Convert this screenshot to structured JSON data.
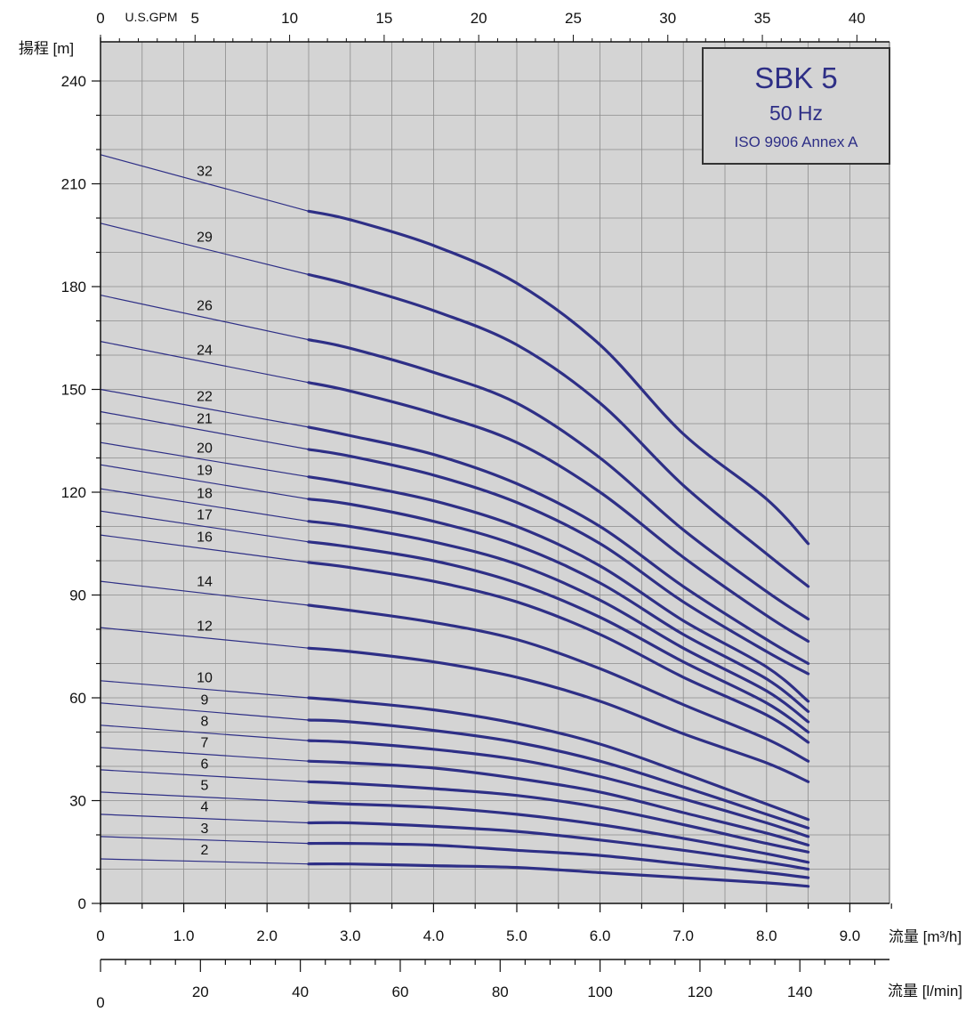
{
  "chart_data": {
    "type": "line",
    "title": "SBK 5",
    "subtitle": "50 Hz",
    "subtitle2": "ISO 9906 Annex A",
    "ylabel": "揚程 [m]",
    "xlabel": "流量 [m³/h]",
    "x_top_label": "U.S.GPM",
    "x2_label": "流量 [l/min]",
    "xlim": [
      0,
      9.5
    ],
    "ylim": [
      0,
      250
    ],
    "grid": true,
    "colors": {
      "curve": "#2e2f86",
      "grid": "#8c8c8c",
      "plot_bg": "#d4d4d4",
      "title": "#2e2f86"
    },
    "y_ticks": [
      "0",
      "30",
      "60",
      "90",
      "120",
      "150",
      "180",
      "210",
      "240"
    ],
    "x_ticks": [
      "0",
      "1.0",
      "2.0",
      "3.0",
      "4.0",
      "5.0",
      "6.0",
      "7.0",
      "8.0",
      "9.0"
    ],
    "x_top_ticks": [
      "0",
      "5",
      "10",
      "15",
      "20",
      "25",
      "30",
      "35",
      "40"
    ],
    "x2_ticks": [
      "0",
      "20",
      "40",
      "60",
      "80",
      "100",
      "120",
      "140"
    ],
    "x": [
      0,
      2.5,
      3.0,
      4.0,
      5.0,
      6.0,
      7.0,
      8.0,
      8.5
    ],
    "operating_range": [
      2.5,
      8.5
    ],
    "series": [
      {
        "label": "32",
        "values": [
          218.5,
          202,
          199.5,
          192,
          181,
          163,
          137,
          118,
          105
        ]
      },
      {
        "label": "29",
        "values": [
          198.5,
          183.5,
          180.5,
          173,
          163,
          146,
          122,
          102,
          92.5
        ]
      },
      {
        "label": "26",
        "values": [
          177.5,
          164.5,
          162,
          155,
          146,
          130,
          109,
          91,
          83
        ]
      },
      {
        "label": "24",
        "values": [
          164,
          152,
          149.5,
          143,
          134.5,
          120,
          101,
          84,
          76.5
        ]
      },
      {
        "label": "22",
        "values": [
          150,
          139,
          136.5,
          131,
          122.5,
          110,
          92.5,
          77,
          70
        ]
      },
      {
        "label": "21",
        "values": [
          143.5,
          132.5,
          130.5,
          125,
          117,
          105,
          88,
          73.5,
          67
        ]
      },
      {
        "label": "20",
        "values": [
          134.5,
          124.5,
          122.5,
          117.5,
          110,
          98.5,
          82.5,
          69,
          59
        ]
      },
      {
        "label": "19",
        "values": [
          128,
          118,
          116.5,
          111.5,
          104.5,
          93.5,
          78.5,
          65.5,
          56
        ]
      },
      {
        "label": "18",
        "values": [
          121,
          111.5,
          110,
          105.5,
          99,
          88.5,
          74.5,
          62,
          53
        ]
      },
      {
        "label": "17",
        "values": [
          114.5,
          105.5,
          104,
          100,
          93.5,
          83.5,
          70.5,
          58.5,
          50
        ]
      },
      {
        "label": "16",
        "values": [
          107.5,
          99.5,
          98,
          94,
          88,
          78.5,
          66,
          55,
          47
        ]
      },
      {
        "label": "14",
        "values": [
          94,
          87,
          85.5,
          82,
          77,
          68.5,
          58,
          48,
          41.5
        ]
      },
      {
        "label": "12",
        "values": [
          80.5,
          74.5,
          73.5,
          70.5,
          66,
          59,
          49.5,
          41,
          35.5
        ]
      },
      {
        "label": "10",
        "values": [
          65,
          60,
          59,
          56.5,
          52.5,
          46.5,
          38,
          29,
          24.5
        ]
      },
      {
        "label": "9",
        "values": [
          58.5,
          53.5,
          53,
          50.5,
          47,
          41.5,
          34,
          26,
          22
        ]
      },
      {
        "label": "8",
        "values": [
          52,
          47.5,
          47,
          45,
          42,
          37,
          30.5,
          23.5,
          19.5
        ]
      },
      {
        "label": "7",
        "values": [
          45.5,
          41.5,
          41,
          39.5,
          36.5,
          32.5,
          26.5,
          20.5,
          17
        ]
      },
      {
        "label": "6",
        "values": [
          39,
          35.5,
          35,
          33.5,
          31.5,
          28,
          23,
          17.5,
          15
        ]
      },
      {
        "label": "5",
        "values": [
          32.5,
          29.5,
          29,
          28,
          26,
          23,
          19,
          14.5,
          12
        ]
      },
      {
        "label": "4",
        "values": [
          26,
          23.5,
          23.5,
          22.5,
          21,
          18.5,
          15.5,
          12,
          10
        ]
      },
      {
        "label": "3",
        "values": [
          19.5,
          17.5,
          17.5,
          17,
          15.5,
          14,
          11.5,
          9,
          7.5
        ]
      },
      {
        "label": "2",
        "values": [
          13,
          11.5,
          11.5,
          11,
          10.5,
          9,
          7.5,
          6,
          5
        ]
      }
    ]
  }
}
